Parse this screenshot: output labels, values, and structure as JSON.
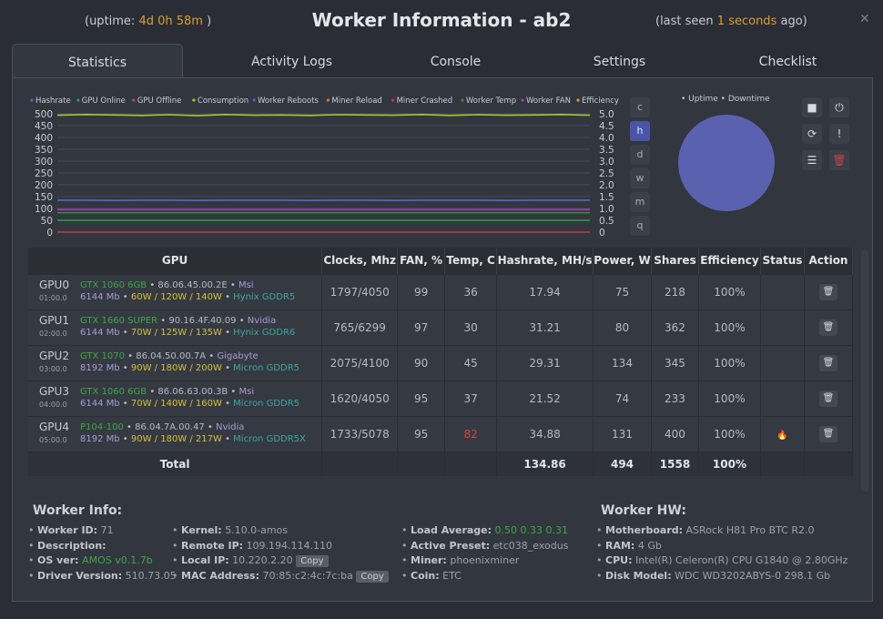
{
  "header": {
    "uptime_prefix": "(uptime: ",
    "uptime": "4d 0h 58m",
    "uptime_suffix": " )",
    "title": "Worker Information - ab2",
    "lastseen_prefix": "(last seen ",
    "lastseen_value": "1 seconds",
    "lastseen_suffix": " ago)",
    "close": "✕"
  },
  "tabs": [
    "Statistics",
    "Activity Logs",
    "Console",
    "Settings",
    "Checklist"
  ],
  "range_buttons": [
    "c",
    "h",
    "d",
    "w",
    "m",
    "q"
  ],
  "pie_legend": "• Uptime • Downtime",
  "icons": {
    "stop": "■",
    "power": "⏻",
    "refresh": "⟳",
    "alert": "!",
    "sliders": "☰",
    "trash": "🗑",
    "flame": "🔥"
  },
  "chart_data": {
    "type": "line",
    "legend": [
      "Hashrate",
      "GPU Online",
      "GPU Offline",
      "Consumption",
      "Worker Reboots",
      "Miner Reload",
      "Miner Crashed",
      "Worker Temp",
      "Worker FAN",
      "Efficiency"
    ],
    "legend_colors": [
      "#5a64c8",
      "#2e9e4a",
      "#c84a4a",
      "#a4c830",
      "#5a64c8",
      "#d07a40",
      "#c83a3a",
      "#3a8a3a",
      "#a040b8",
      "#d0a030"
    ],
    "y_left": {
      "range": [
        0,
        500
      ],
      "ticks": [
        "500",
        "450",
        "400",
        "350",
        "300",
        "250",
        "200",
        "150",
        "100",
        "50",
        "0"
      ]
    },
    "y_right": {
      "range": [
        0,
        5
      ],
      "ticks": [
        "5.0",
        "4.5",
        "4.0",
        "3.5",
        "3.0",
        "2.5",
        "2.0",
        "1.5",
        "1.0",
        "0.5",
        "0"
      ]
    },
    "series": [
      {
        "name": "Consumption",
        "values": [
          494,
          497,
          495,
          493,
          496,
          492,
          497,
          494,
          495,
          493,
          496,
          495,
          494,
          497,
          493,
          496,
          494,
          495,
          497,
          494
        ],
        "color": "#a4c830"
      },
      {
        "name": "Hashrate",
        "values": [
          135,
          135,
          134,
          135,
          135,
          134,
          135,
          135,
          135,
          134,
          135,
          135,
          134,
          135,
          135,
          135,
          134,
          135,
          135,
          135
        ],
        "color": "#5a64c8"
      },
      {
        "name": "Worker FAN",
        "values": [
          95,
          95,
          95,
          95,
          95,
          95,
          95,
          95,
          95,
          95,
          95,
          95,
          95,
          95,
          95,
          95,
          95,
          95,
          95,
          95
        ],
        "color": "#a040b8"
      },
      {
        "name": "Worker Temp",
        "values": [
          82,
          82,
          82,
          82,
          82,
          82,
          82,
          82,
          82,
          82,
          82,
          82,
          82,
          82,
          82,
          82,
          82,
          82,
          82,
          82
        ],
        "color": "#3a8a3a"
      },
      {
        "name": "GPU Online",
        "values": [
          50,
          50,
          50,
          50,
          50,
          50,
          50,
          50,
          50,
          50,
          50,
          50,
          50,
          50,
          50,
          50,
          50,
          50,
          50,
          50
        ],
        "color": "#2e9e4a"
      },
      {
        "name": "Miner Crashed",
        "values": [
          0,
          0,
          0,
          0,
          0,
          0,
          0,
          0,
          0,
          0,
          0,
          0,
          0,
          0,
          0,
          0,
          0,
          0,
          0,
          0
        ],
        "color": "#c83a3a"
      }
    ],
    "grid": true
  },
  "table": {
    "headers": [
      "GPU",
      "Clocks, Mhz",
      "FAN, %",
      "Temp, C",
      "Hashrate, MH/s",
      "Power, W",
      "Shares",
      "Efficiency",
      "Status",
      "Action"
    ],
    "rows": [
      {
        "id": "GPU0",
        "bus": "01:00.0",
        "model": "GTX 1060 6GB",
        "bios": "86.06.45.00.2E",
        "vendor": "Msi",
        "mem": "6144 Mb",
        "power": "60W / 120W / 140W",
        "memtype": "Hynix GDDR5",
        "clocks": "1797/4050",
        "fan": "99",
        "temp": "36",
        "hash": "17.94",
        "pw": "75",
        "shares": "218",
        "eff": "100%",
        "hot": false
      },
      {
        "id": "GPU1",
        "bus": "02:00.0",
        "model": "GTX 1660 SUPER",
        "bios": "90.16.4F.40.09",
        "vendor": "Nvidia",
        "mem": "6144 Mb",
        "power": "70W / 125W / 135W",
        "memtype": "Hynix GDDR6",
        "clocks": "765/6299",
        "fan": "97",
        "temp": "30",
        "hash": "31.21",
        "pw": "80",
        "shares": "362",
        "eff": "100%",
        "hot": false
      },
      {
        "id": "GPU2",
        "bus": "03:00.0",
        "model": "GTX 1070",
        "bios": "86.04.50.00.7A",
        "vendor": "Gigabyte",
        "mem": "8192 Mb",
        "power": "90W / 180W / 200W",
        "memtype": "Micron GDDR5",
        "clocks": "2075/4100",
        "fan": "90",
        "temp": "45",
        "hash": "29.31",
        "pw": "134",
        "shares": "345",
        "eff": "100%",
        "hot": false
      },
      {
        "id": "GPU3",
        "bus": "04:00.0",
        "model": "GTX 1060 6GB",
        "bios": "86.06.63.00.3B",
        "vendor": "Msi",
        "mem": "6144 Mb",
        "power": "70W / 140W / 160W",
        "memtype": "Micron GDDR5",
        "clocks": "1620/4050",
        "fan": "95",
        "temp": "37",
        "hash": "21.52",
        "pw": "74",
        "shares": "233",
        "eff": "100%",
        "hot": false
      },
      {
        "id": "GPU4",
        "bus": "05:00.0",
        "model": "P104-100",
        "bios": "86.04.7A.00.47",
        "vendor": "Nvidia",
        "mem": "8192 Mb",
        "power": "90W / 180W / 217W",
        "memtype": "Micron GDDR5X",
        "clocks": "1733/5078",
        "fan": "95",
        "temp": "82",
        "hash": "34.88",
        "pw": "131",
        "shares": "400",
        "eff": "100%",
        "hot": true
      }
    ],
    "total": {
      "label": "Total",
      "hash": "134.86",
      "pw": "494",
      "shares": "1558",
      "eff": "100%"
    }
  },
  "worker_info": {
    "title": "Worker Info:",
    "col1": [
      {
        "k": "Worker ID:",
        "v": "71"
      },
      {
        "k": "Description:",
        "v": ""
      },
      {
        "k": "OS ver:",
        "v": "AMOS v0.1.7b"
      },
      {
        "k": "Driver Version:",
        "v": "510.73.05"
      }
    ],
    "col2": [
      {
        "k": "Kernel:",
        "v": "5.10.0-amos"
      },
      {
        "k": "Remote IP:",
        "v": "109.194.114.110"
      },
      {
        "k": "Local IP:",
        "v": "10.220.2.20"
      },
      {
        "k": "MAC Address:",
        "v": "70:85:c2:4c:7c:ba"
      }
    ],
    "col3": [
      {
        "k": "Load Average:",
        "v": "0.50 0.33 0.31"
      },
      {
        "k": "Active Preset:",
        "v": "etc038_exodus"
      },
      {
        "k": "Miner:",
        "v": "phoenixminer"
      },
      {
        "k": "Coin:",
        "v": "ETC"
      }
    ],
    "copy": "Copy"
  },
  "worker_hw": {
    "title": "Worker HW:",
    "items": [
      {
        "k": "Motherboard:",
        "v": "ASRock H81 Pro BTC R2.0"
      },
      {
        "k": "RAM:",
        "v": "4 Gb"
      },
      {
        "k": "CPU:",
        "v": "Intel(R) Celeron(R) CPU G1840 @ 2.80GHz"
      },
      {
        "k": "Disk Model:",
        "v": "WDC WD3202ABYS-0 298.1 Gb"
      }
    ]
  }
}
